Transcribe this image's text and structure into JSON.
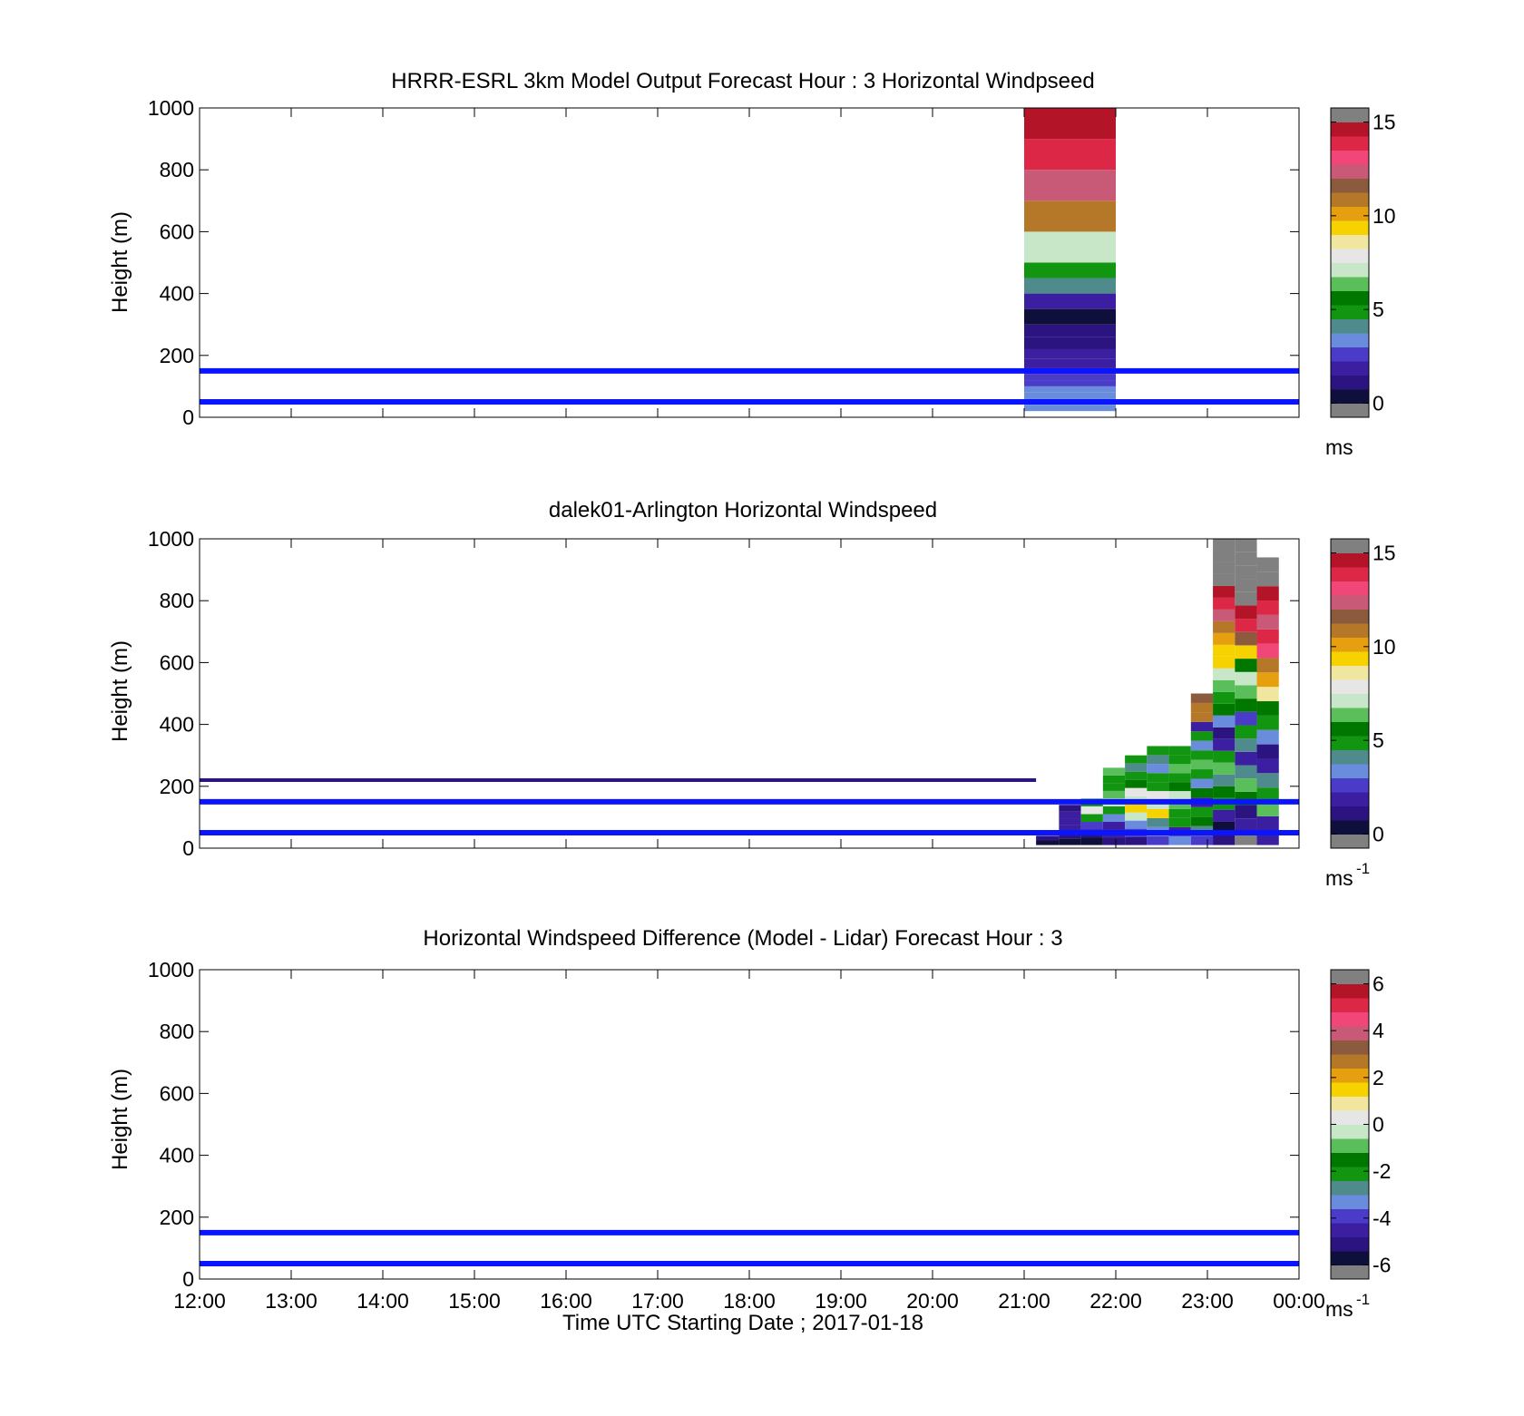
{
  "chart_data": [
    {
      "type": "heatmap",
      "title": "HRRR-ESRL 3km Model Output   Forecast Hour : 3 Horizontal Windpseed",
      "ylabel": "Height (m)",
      "ylim": [
        0,
        1000
      ],
      "yticks": [
        "0",
        "200",
        "400",
        "600",
        "800",
        "1000"
      ],
      "xlim_hours": [
        12,
        24
      ],
      "colorbar": {
        "ticks": [
          "0",
          "5",
          "10",
          "15"
        ],
        "range": [
          0,
          15
        ],
        "units": "ms",
        "units_sup": ""
      },
      "reference_lines_m": [
        50,
        150
      ],
      "cells": [
        {
          "t0": 21.0,
          "t1": 22.0,
          "z0": 20,
          "z1": 40,
          "v": 3.5
        },
        {
          "t0": 21.0,
          "t1": 22.0,
          "z0": 40,
          "z1": 60,
          "v": 3.2
        },
        {
          "t0": 21.0,
          "t1": 22.0,
          "z0": 60,
          "z1": 80,
          "v": 3.0
        },
        {
          "t0": 21.0,
          "t1": 22.0,
          "z0": 80,
          "z1": 100,
          "v": 3.1
        },
        {
          "t0": 21.0,
          "t1": 22.0,
          "z0": 100,
          "z1": 120,
          "v": 2.6
        },
        {
          "t0": 21.0,
          "t1": 22.0,
          "z0": 120,
          "z1": 140,
          "v": 2.3
        },
        {
          "t0": 21.0,
          "t1": 22.0,
          "z0": 140,
          "z1": 160,
          "v": 2.1
        },
        {
          "t0": 21.0,
          "t1": 22.0,
          "z0": 160,
          "z1": 190,
          "v": 1.9
        },
        {
          "t0": 21.0,
          "t1": 22.0,
          "z0": 190,
          "z1": 220,
          "v": 1.6
        },
        {
          "t0": 21.0,
          "t1": 22.0,
          "z0": 220,
          "z1": 260,
          "v": 1.4
        },
        {
          "t0": 21.0,
          "t1": 22.0,
          "z0": 260,
          "z1": 300,
          "v": 1.0
        },
        {
          "t0": 21.0,
          "t1": 22.0,
          "z0": 300,
          "z1": 350,
          "v": 0.3
        },
        {
          "t0": 21.0,
          "t1": 22.0,
          "z0": 350,
          "z1": 400,
          "v": 1.5
        },
        {
          "t0": 21.0,
          "t1": 22.0,
          "z0": 400,
          "z1": 450,
          "v": 4.2
        },
        {
          "t0": 21.0,
          "t1": 22.0,
          "z0": 450,
          "z1": 500,
          "v": 5.0
        },
        {
          "t0": 21.0,
          "t1": 22.0,
          "z0": 500,
          "z1": 600,
          "v": 7.0
        },
        {
          "t0": 21.0,
          "t1": 22.0,
          "z0": 600,
          "z1": 700,
          "v": 10.8
        },
        {
          "t0": 21.0,
          "t1": 22.0,
          "z0": 700,
          "z1": 800,
          "v": 12.0
        },
        {
          "t0": 21.0,
          "t1": 22.0,
          "z0": 800,
          "z1": 900,
          "v": 13.8
        },
        {
          "t0": 21.0,
          "t1": 22.0,
          "z0": 900,
          "z1": 1000,
          "v": 14.8
        }
      ]
    },
    {
      "type": "heatmap",
      "title": "dalek01-Arlington  Horizontal Windspeed",
      "ylabel": "Height (m)",
      "ylim": [
        0,
        1000
      ],
      "yticks": [
        "0",
        "200",
        "400",
        "600",
        "800",
        "1000"
      ],
      "xlim_hours": [
        12,
        24
      ],
      "colorbar": {
        "ticks": [
          "0",
          "5",
          "10",
          "15"
        ],
        "range": [
          0,
          15
        ],
        "units": "ms",
        "units_sup": "-1"
      },
      "reference_lines_m": [
        50,
        150
      ],
      "segments": [
        {
          "t0": 12.0,
          "t1": 21.13,
          "z": 220,
          "v": 1.0
        }
      ],
      "profile_columns": [
        {
          "t0": 21.13,
          "t1": 21.38,
          "z0": 10,
          "z1": 40,
          "v": [
            0.6,
            1.0
          ]
        },
        {
          "t0": 21.38,
          "t1": 21.62,
          "z0": 10,
          "z1": 140,
          "v": [
            0.5,
            1.2,
            1.8,
            1.5,
            2.0,
            1.1
          ]
        },
        {
          "t0": 21.62,
          "t1": 21.86,
          "z0": 10,
          "z1": 160,
          "v": [
            0.6,
            1.3,
            2.6,
            4.6,
            7.5,
            5.0
          ]
        },
        {
          "t0": 21.86,
          "t1": 22.1,
          "z0": 10,
          "z1": 260,
          "v": [
            0.8,
            1.5,
            2.0,
            3.5,
            5.0,
            7.2,
            6.4,
            5.2,
            4.5,
            6.0
          ]
        },
        {
          "t0": 22.1,
          "t1": 22.34,
          "z0": 10,
          "z1": 300,
          "v": [
            1.1,
            2.3,
            3.6,
            7.0,
            9.0,
            6.8,
            7.5,
            5.6,
            4.6,
            3.9,
            5.0
          ]
        },
        {
          "t0": 22.34,
          "t1": 22.58,
          "z0": 10,
          "z1": 330,
          "v": [
            2.6,
            3.0,
            4.2,
            9.5,
            6.9,
            7.6,
            5.2,
            4.8,
            3.6,
            4.4,
            5.0
          ]
        },
        {
          "t0": 22.58,
          "t1": 22.82,
          "z0": 10,
          "z1": 330,
          "v": [
            3.4,
            2.0,
            4.5,
            5.2,
            6.2,
            7.0,
            5.8,
            4.9,
            6.4,
            5.0,
            4.7
          ]
        },
        {
          "t0": 22.82,
          "t1": 23.06,
          "z0": 10,
          "z1": 500,
          "v": [
            2.6,
            4.4,
            5.6,
            4.8,
            2.2,
            5.3,
            3.4,
            4.9,
            6.2,
            5.0,
            3.5,
            4.6,
            2.0,
            11.0,
            10.6,
            11.5
          ]
        },
        {
          "t0": 23.06,
          "t1": 23.3,
          "z0": 10,
          "z1": 1000,
          "v": [
            1.0,
            0.4,
            2.0,
            4.8,
            5.6,
            4.2,
            6.4,
            5.1,
            2.0,
            1.2,
            3.5,
            5.4,
            4.6,
            6.6,
            7.4,
            9.0,
            9.7,
            10.4,
            11.0,
            12.4,
            14.0,
            14.5,
            15.5,
            15.5,
            15.5,
            15.5
          ]
        },
        {
          "t0": 23.3,
          "t1": 23.54,
          "z0": 10,
          "z1": 1000,
          "v": [
            15.5,
            2.2,
            0.8,
            5.8,
            6.6,
            4.4,
            1.8,
            4.4,
            5.0,
            2.6,
            5.3,
            6.3,
            7.3,
            5.4,
            9.4,
            11.6,
            13.6,
            14.6,
            15.5,
            15.5,
            15.5,
            15.5,
            15.5
          ]
        },
        {
          "t0": 23.54,
          "t1": 23.78,
          "z0": 10,
          "z1": 940,
          "v": [
            2.0,
            1.5,
            6.6,
            5.0,
            4.0,
            2.0,
            1.4,
            3.7,
            4.6,
            5.6,
            8.4,
            9.9,
            10.6,
            13.0,
            14.2,
            12.5,
            13.6,
            15.0,
            15.5,
            15.5
          ]
        }
      ]
    },
    {
      "type": "heatmap",
      "title": "Horizontal Windspeed Difference (Model - Lidar) Forecast Hour : 3",
      "ylabel": "Height (m)",
      "xlabel": "Time UTC  Starting Date ; 2017-01-18",
      "ylim": [
        0,
        1000
      ],
      "yticks": [
        "0",
        "200",
        "400",
        "600",
        "800",
        "1000"
      ],
      "xlim_hours": [
        12,
        24
      ],
      "xticks": [
        "12:00",
        "13:00",
        "14:00",
        "15:00",
        "16:00",
        "17:00",
        "18:00",
        "19:00",
        "20:00",
        "21:00",
        "22:00",
        "23:00",
        "00:00"
      ],
      "colorbar": {
        "ticks": [
          "-6",
          "-4",
          "-2",
          "0",
          "2",
          "4",
          "6"
        ],
        "range": [
          -6,
          6
        ],
        "units": "ms",
        "units_sup": "-1"
      },
      "reference_lines_m": [
        50,
        150
      ],
      "cells": []
    }
  ],
  "colors": {
    "reference_line": "#0a14ff",
    "colormap": [
      "#808080",
      "#0f0f3c",
      "#2b1480",
      "#3c1ea0",
      "#4a3cc8",
      "#6a8cdc",
      "#4f8a8c",
      "#129612",
      "#007800",
      "#5abe5a",
      "#c8e6c8",
      "#e6e6e6",
      "#f0e6a0",
      "#f5d200",
      "#e6a00f",
      "#b47828",
      "#8c5a3c",
      "#c85a78",
      "#f04678",
      "#dc2846",
      "#b41428",
      "#808080"
    ]
  }
}
